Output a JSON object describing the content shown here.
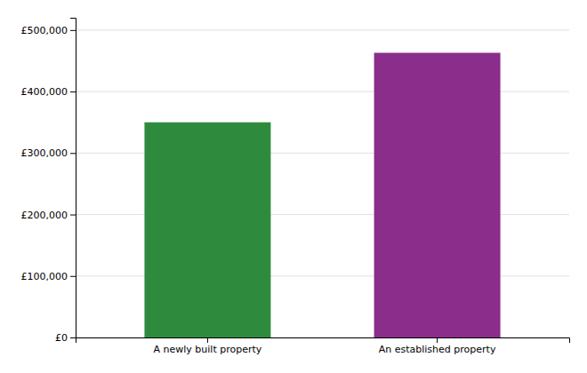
{
  "chart_data": {
    "type": "bar",
    "categories": [
      "A newly built property",
      "An established property"
    ],
    "values": [
      350000,
      463000
    ],
    "colors": [
      "#2e8b3e",
      "#8b2d8b"
    ],
    "ylim": [
      0,
      520000
    ],
    "yticks": [
      {
        "value": 0,
        "label": "£0"
      },
      {
        "value": 100000,
        "label": "£100,000"
      },
      {
        "value": 200000,
        "label": "£200,000"
      },
      {
        "value": 300000,
        "label": "£300,000"
      },
      {
        "value": 400000,
        "label": "£400,000"
      },
      {
        "value": 500000,
        "label": "£500,000"
      }
    ],
    "grid": true
  }
}
